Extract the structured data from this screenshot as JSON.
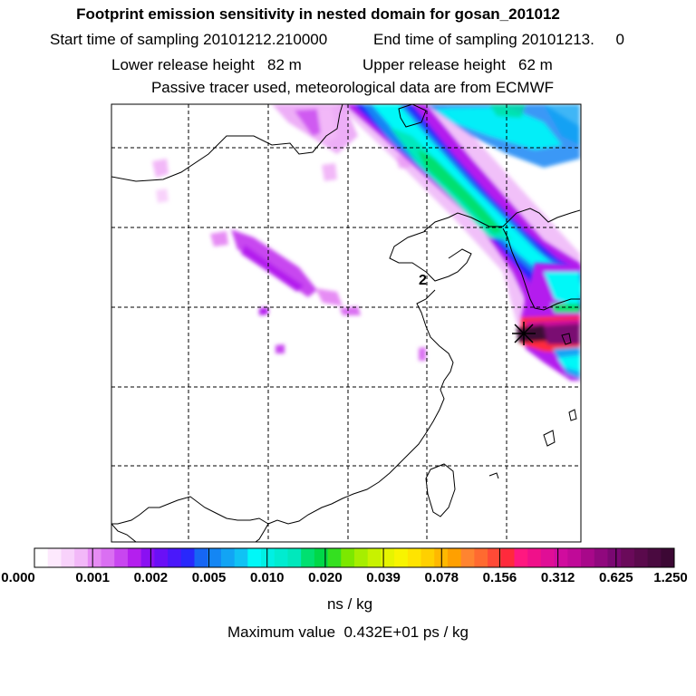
{
  "header": {
    "title": "Footprint emission sensitivity in nested domain for gosan_201012",
    "start_time": "Start time of sampling 20101212.210000",
    "end_time": "End time of sampling 20101213.     0",
    "lower_height": "Lower release height   82 m",
    "upper_height": "Upper release height   62 m",
    "tracer_note": "Passive tracer used, meteorological data are from ECMWF"
  },
  "map": {
    "receptor_label": "2",
    "colors": {
      "frame": "#000000",
      "grid": "#000000",
      "coast": "#000000"
    }
  },
  "legend": {
    "tick_labels": [
      "0.000",
      "0.001",
      "0.002",
      "0.005",
      "0.010",
      "0.020",
      "0.039",
      "0.078",
      "0.156",
      "0.312",
      "0.625",
      "1.250"
    ],
    "units": "ns / kg",
    "colors": [
      "#ffffff",
      "#fde9fd",
      "#f8d2fb",
      "#f2b8f8",
      "#e68cf4",
      "#da6ff2",
      "#c846f0",
      "#b41fee",
      "#8a10f2",
      "#6a10f6",
      "#4a18fa",
      "#2828fc",
      "#1666f4",
      "#1486f4",
      "#12a4f4",
      "#10c2f4",
      "#00f8f8",
      "#00f0e4",
      "#00ecd0",
      "#00e8bc",
      "#00e070",
      "#00d848",
      "#34e020",
      "#7ce800",
      "#a6ee00",
      "#c8f200",
      "#e6f400",
      "#f8f400",
      "#ffe400",
      "#ffd000",
      "#ffb800",
      "#ffa000",
      "#ff8430",
      "#ff6a30",
      "#ff4a36",
      "#ff2a3c",
      "#ff1880",
      "#f0108a",
      "#e00e96",
      "#d00c9e",
      "#c00a98",
      "#a8088a",
      "#90087e",
      "#7a0872",
      "#6a0a5a",
      "#5a0a4c",
      "#4a0a40",
      "#3c0834"
    ]
  },
  "footer": {
    "max_value": "Maximum value  0.432E+01 ps / kg"
  }
}
